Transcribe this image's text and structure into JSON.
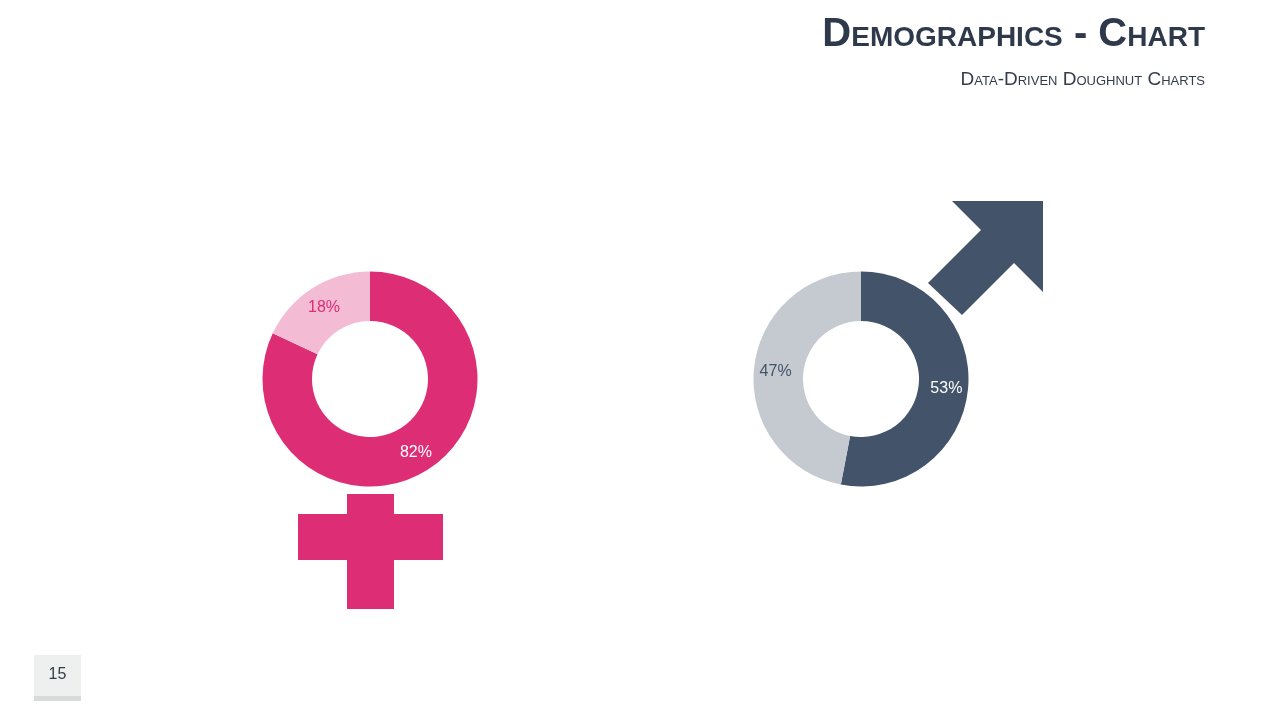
{
  "chart_data": [
    {
      "type": "donut",
      "categories": [
        null,
        null
      ],
      "values": [
        82,
        18
      ],
      "colors": [
        "#dd2d75",
        "#f3bcd4"
      ],
      "value_labels": [
        "82%",
        "18%"
      ],
      "annotations": [
        "15"
      ]
    },
    {
      "type": "donut",
      "title": "Demographics - Chart",
      "subtitle": "Data-Driven Doughnut Charts",
      "categories": [
        null,
        null
      ],
      "values": [
        53,
        47
      ],
      "colors": [
        "#435369",
        "#c5cad1"
      ],
      "value_labels": [
        "53%",
        "47%"
      ]
    }
  ]
}
